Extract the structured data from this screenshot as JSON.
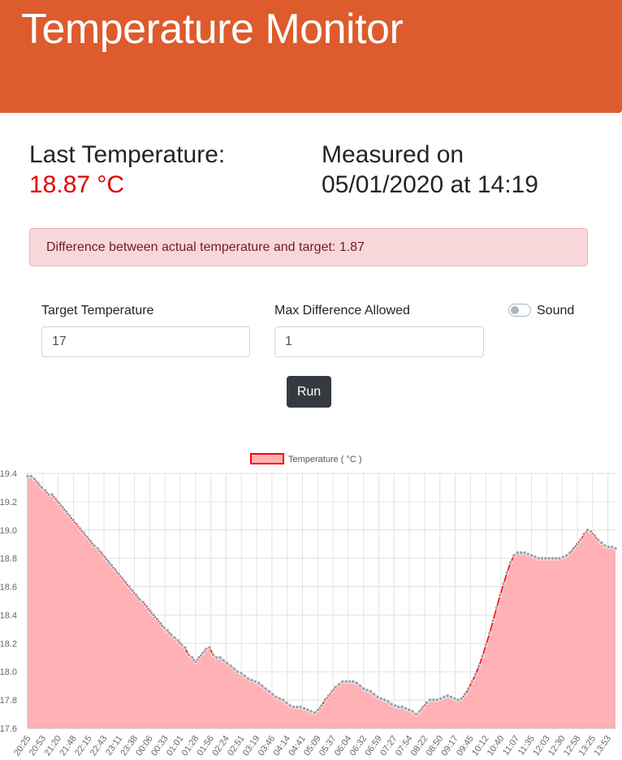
{
  "header": {
    "title": "Temperature Monitor"
  },
  "stats": {
    "last_label": "Last Temperature:",
    "last_value": "18.87 °C",
    "measured_label": "Measured on",
    "measured_value": "05/01/2020 at 14:19"
  },
  "alert": {
    "text": "Difference between actual temperature and target: 1.87"
  },
  "form": {
    "target_label": "Target Temperature",
    "target_value": "17",
    "maxdiff_label": "Max Difference Allowed",
    "maxdiff_value": "1",
    "sound_label": "Sound",
    "sound_on": false,
    "run_label": "Run"
  },
  "colors": {
    "header": "#dd5b2c",
    "temperature": "#e00000",
    "line": "#ff0000",
    "fill": "#ffb1b5",
    "point": "#9aa3ad"
  },
  "chart_data": {
    "type": "area",
    "legend": [
      "Temperature ( °C )"
    ],
    "legend_position": "top",
    "grid": true,
    "ylim": [
      17.6,
      19.4
    ],
    "yticks": [
      "17.6",
      "17.8",
      "18.0",
      "18.2",
      "18.4",
      "18.6",
      "18.8",
      "19.0",
      "19.2",
      "19.4"
    ],
    "x_tick_labels": [
      "20:25",
      "20:53",
      "21:20",
      "21:48",
      "22:15",
      "22:43",
      "23:11",
      "23:38",
      "00:06",
      "00:33",
      "01:01",
      "01:28",
      "01:56",
      "02:24",
      "02:51",
      "03:19",
      "03:46",
      "04:14",
      "04:41",
      "05:09",
      "05:37",
      "06:04",
      "06:32",
      "06:59",
      "07:27",
      "07:54",
      "08:22",
      "08:50",
      "09:17",
      "09:45",
      "10:12",
      "10:40",
      "11:07",
      "11:35",
      "12:03",
      "12:30",
      "12:58",
      "13:25",
      "13:53"
    ],
    "series": [
      {
        "name": "Temperature ( °C )",
        "x_range": [
          "20:25",
          "14:19"
        ],
        "values": [
          19.38,
          19.38,
          19.36,
          19.33,
          19.3,
          19.28,
          19.25,
          19.25,
          19.22,
          19.19,
          19.16,
          19.13,
          19.1,
          19.07,
          19.04,
          19.01,
          18.98,
          18.95,
          18.92,
          18.89,
          18.87,
          18.84,
          18.81,
          18.78,
          18.75,
          18.72,
          18.69,
          18.66,
          18.63,
          18.6,
          18.57,
          18.54,
          18.51,
          18.49,
          18.46,
          18.43,
          18.4,
          18.37,
          18.34,
          18.31,
          18.29,
          18.26,
          18.24,
          18.22,
          18.19,
          18.17,
          18.12,
          18.1,
          18.07,
          18.1,
          18.13,
          18.16,
          18.17,
          18.12,
          18.1,
          18.1,
          18.08,
          18.06,
          18.04,
          18.02,
          18.0,
          17.99,
          17.97,
          17.95,
          17.94,
          17.93,
          17.92,
          17.9,
          17.88,
          17.86,
          17.84,
          17.82,
          17.81,
          17.8,
          17.78,
          17.76,
          17.75,
          17.75,
          17.75,
          17.74,
          17.73,
          17.72,
          17.71,
          17.73,
          17.76,
          17.8,
          17.83,
          17.86,
          17.89,
          17.91,
          17.93,
          17.93,
          17.93,
          17.93,
          17.92,
          17.9,
          17.88,
          17.87,
          17.86,
          17.84,
          17.82,
          17.81,
          17.8,
          17.79,
          17.77,
          17.76,
          17.75,
          17.75,
          17.74,
          17.73,
          17.72,
          17.7,
          17.72,
          17.75,
          17.78,
          17.8,
          17.8,
          17.8,
          17.81,
          17.82,
          17.83,
          17.82,
          17.81,
          17.8,
          17.81,
          17.84,
          17.88,
          17.93,
          17.98,
          18.04,
          18.11,
          18.19,
          18.27,
          18.36,
          18.45,
          18.54,
          18.62,
          18.7,
          18.77,
          18.82,
          18.84,
          18.84,
          18.84,
          18.83,
          18.82,
          18.81,
          18.8,
          18.8,
          18.8,
          18.8,
          18.8,
          18.8,
          18.8,
          18.81,
          18.82,
          18.84,
          18.87,
          18.9,
          18.93,
          18.97,
          19.0,
          18.99,
          18.96,
          18.93,
          18.91,
          18.89,
          18.88,
          18.88,
          18.87
        ]
      }
    ]
  }
}
